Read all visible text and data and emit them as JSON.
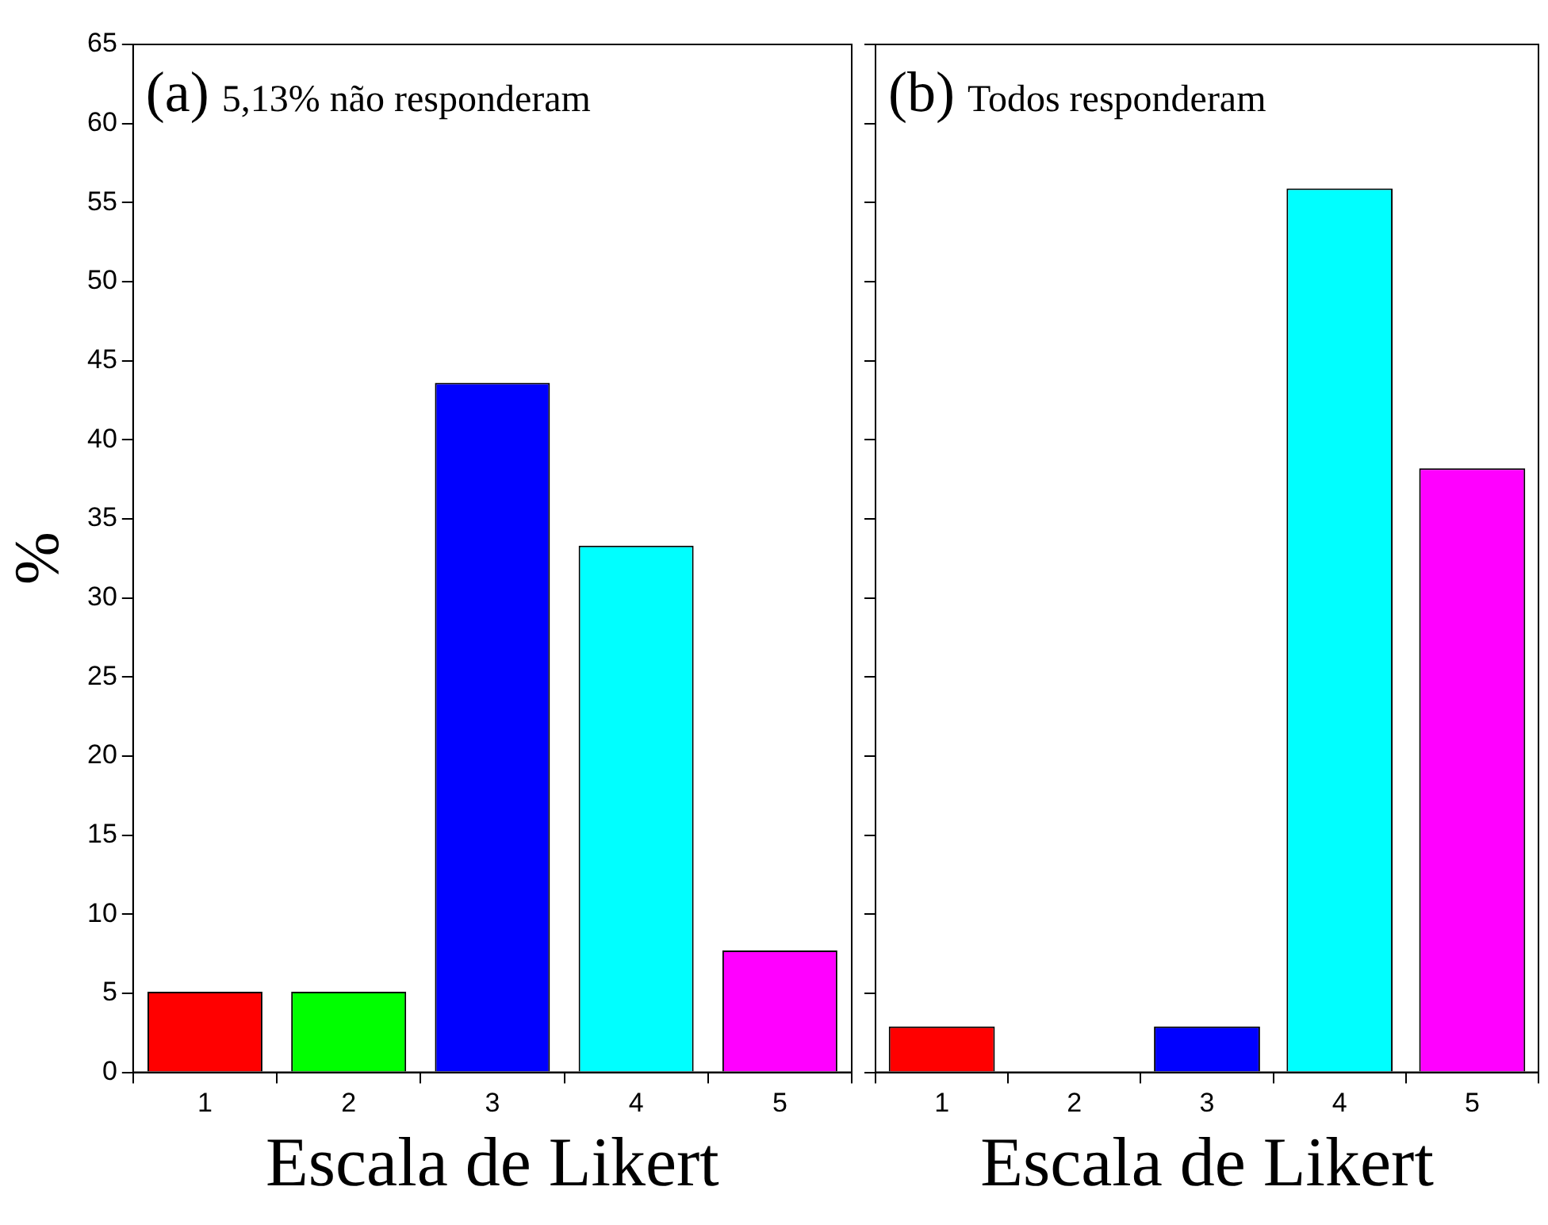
{
  "chart_data": [
    {
      "type": "bar",
      "xlabel": "Escala de Likert",
      "ylabel": "%",
      "annotations": [
        "(a)",
        "5,13% não responderam"
      ],
      "categories": [
        "1",
        "2",
        "3",
        "4",
        "5"
      ],
      "values": [
        5.1,
        5.1,
        43.6,
        33.3,
        7.7
      ],
      "colors": [
        "#ff0000",
        "#00ff00",
        "#0000ff",
        "#00ffff",
        "#ff00ff"
      ],
      "ylim": [
        0,
        65
      ],
      "yticks": [
        0,
        5,
        10,
        15,
        20,
        25,
        30,
        35,
        40,
        45,
        50,
        55,
        60,
        65
      ],
      "grid": false
    },
    {
      "type": "bar",
      "xlabel": "Escala de Likert",
      "annotations": [
        "(b)",
        "Todos responderam"
      ],
      "categories": [
        "1",
        "2",
        "3",
        "4",
        "5"
      ],
      "values": [
        2.9,
        0,
        2.9,
        55.9,
        38.2
      ],
      "colors": [
        "#ff0000",
        "#00ff00",
        "#0000ff",
        "#00ffff",
        "#ff00ff"
      ],
      "ylim": [
        0,
        65
      ],
      "yticks": [
        0,
        5,
        10,
        15,
        20,
        25,
        30,
        35,
        40,
        45,
        50,
        55,
        60,
        65
      ],
      "grid": false,
      "tick_labels": "x"
    }
  ]
}
